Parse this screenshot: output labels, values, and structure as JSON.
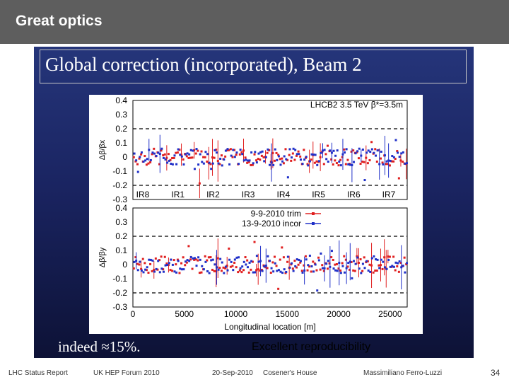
{
  "header": {
    "title": "Great optics"
  },
  "slide": {
    "panel_title": "Global correction (incorporated), Beam 2",
    "bottom_note": "indeed ≈15%.",
    "reproducibility_note": "Excellent reproducibility"
  },
  "chart_data": [
    {
      "type": "scatter",
      "title": "LHCB2 3.5 TeV β*=3.5m",
      "ylabel": "Δβ/βx",
      "ylim": [
        -0.3,
        0.4
      ],
      "yticks": [
        "0.4",
        "0.3",
        "0.2",
        "0.1",
        "0",
        "-0.1",
        "-0.2",
        "-0.3"
      ],
      "reference_lines": [
        0.2,
        -0.2
      ],
      "ir_labels": [
        "IR8",
        "IR1",
        "IR2",
        "IR3",
        "IR4",
        "IR5",
        "IR6",
        "IR7"
      ],
      "colors": {
        "trim": "#e02020",
        "incor": "#2030c8"
      }
    },
    {
      "type": "scatter",
      "xlabel": "Longitudinal location [m]",
      "ylabel": "Δβ/βy",
      "xlim": [
        0,
        26659
      ],
      "ylim": [
        -0.3,
        0.4
      ],
      "xticks": [
        "0",
        "5000",
        "10000",
        "15000",
        "20000",
        "25000"
      ],
      "yticks": [
        "0.4",
        "0.3",
        "0.2",
        "0.1",
        "0",
        "-0.1",
        "-0.2",
        "-0.3"
      ],
      "reference_lines": [
        0.2,
        -0.2
      ],
      "legend": [
        "9-9-2010 trim",
        "13-9-2010 incor"
      ],
      "legend_position": "top-center",
      "colors": {
        "trim": "#e02020",
        "incor": "#2030c8"
      }
    }
  ],
  "footer": {
    "report": "LHC Status Report",
    "forum": "UK HEP Forum 2010",
    "date": "20-Sep-2010",
    "venue": "Cosener's House",
    "author": "Massimiliano Ferro-Luzzi",
    "page": "34"
  }
}
